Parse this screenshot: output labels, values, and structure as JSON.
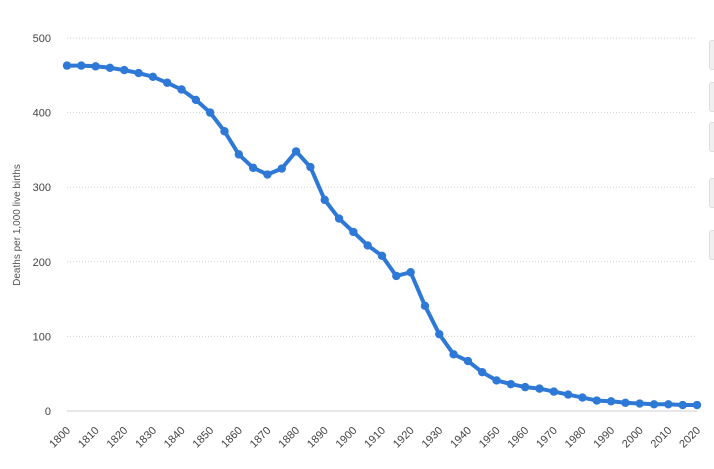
{
  "chart_data": {
    "type": "line",
    "title": "",
    "xlabel": "",
    "ylabel": "Deaths per 1,000 live births",
    "ylim": [
      0,
      500
    ],
    "xlim": [
      1800,
      2020
    ],
    "y_ticks": [
      0,
      100,
      200,
      300,
      400,
      500
    ],
    "x_ticks": [
      1800,
      1810,
      1820,
      1830,
      1840,
      1850,
      1860,
      1870,
      1880,
      1890,
      1900,
      1910,
      1920,
      1930,
      1940,
      1950,
      1960,
      1970,
      1980,
      1990,
      2000,
      2010,
      2020
    ],
    "grid": true,
    "color": "#2e78d6",
    "x": [
      1800,
      1805,
      1810,
      1815,
      1820,
      1825,
      1830,
      1835,
      1840,
      1845,
      1850,
      1855,
      1860,
      1865,
      1870,
      1875,
      1880,
      1885,
      1890,
      1895,
      1900,
      1905,
      1910,
      1915,
      1920,
      1925,
      1930,
      1935,
      1940,
      1945,
      1950,
      1955,
      1960,
      1965,
      1970,
      1975,
      1980,
      1985,
      1990,
      1995,
      2000,
      2005,
      2010,
      2015,
      2020
    ],
    "values": [
      463,
      463,
      462,
      460,
      457,
      453,
      448,
      440,
      431,
      417,
      400,
      375,
      344,
      326,
      317,
      325,
      348,
      327,
      283,
      258,
      240,
      222,
      208,
      181,
      186,
      141,
      103,
      76,
      67,
      52,
      41,
      36,
      32,
      30,
      26,
      22,
      18,
      14,
      13,
      11,
      10,
      9,
      9,
      8,
      8
    ]
  }
}
